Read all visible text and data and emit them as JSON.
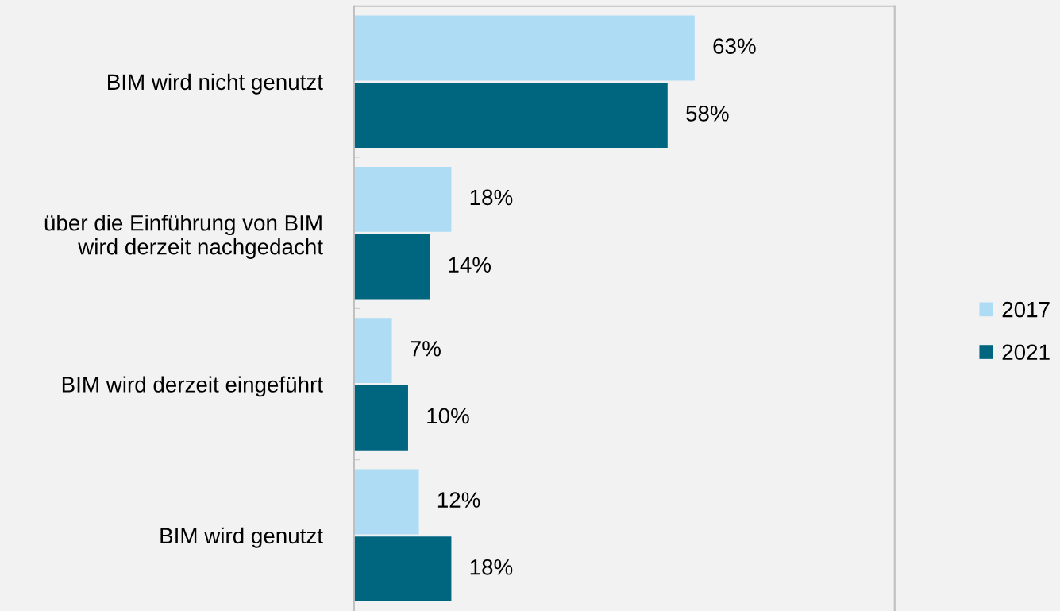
{
  "chart_data": {
    "type": "bar",
    "orientation": "horizontal",
    "categories": [
      "BIM wird nicht genutzt",
      "über die Einführung von BIM\nwird derzeit nachgedacht",
      "BIM wird derzeit eingeführt",
      "BIM wird genutzt"
    ],
    "series": [
      {
        "name": "2017",
        "color": "#addcf4",
        "values": [
          63,
          18,
          7,
          12
        ],
        "value_labels": [
          "63%",
          "18%",
          "7%",
          "12%"
        ]
      },
      {
        "name": "2021",
        "color": "#006680",
        "values": [
          58,
          14,
          10,
          18
        ],
        "value_labels": [
          "58%",
          "14%",
          "10%",
          "18%"
        ]
      }
    ],
    "xlim": [
      0,
      100
    ],
    "tick_labels": "y",
    "grid": false,
    "legend": "right"
  }
}
